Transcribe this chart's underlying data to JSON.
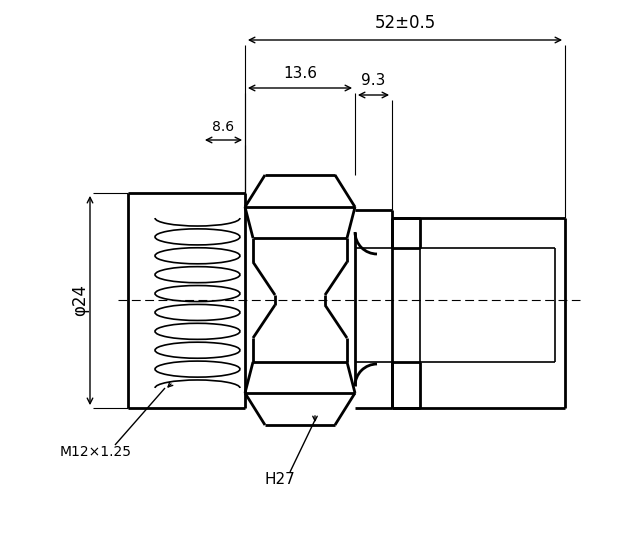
{
  "bg_color": "#ffffff",
  "annotations": {
    "dim_total": "52±0.5",
    "dim_13_6": "13.6",
    "dim_9_3": "9.3",
    "dim_8_6": "8.6",
    "dim_phi24": "φ24",
    "label_M12": "M12×1.25",
    "label_H27": "H27"
  },
  "figsize": [
    6.17,
    5.55
  ],
  "dpi": 100
}
